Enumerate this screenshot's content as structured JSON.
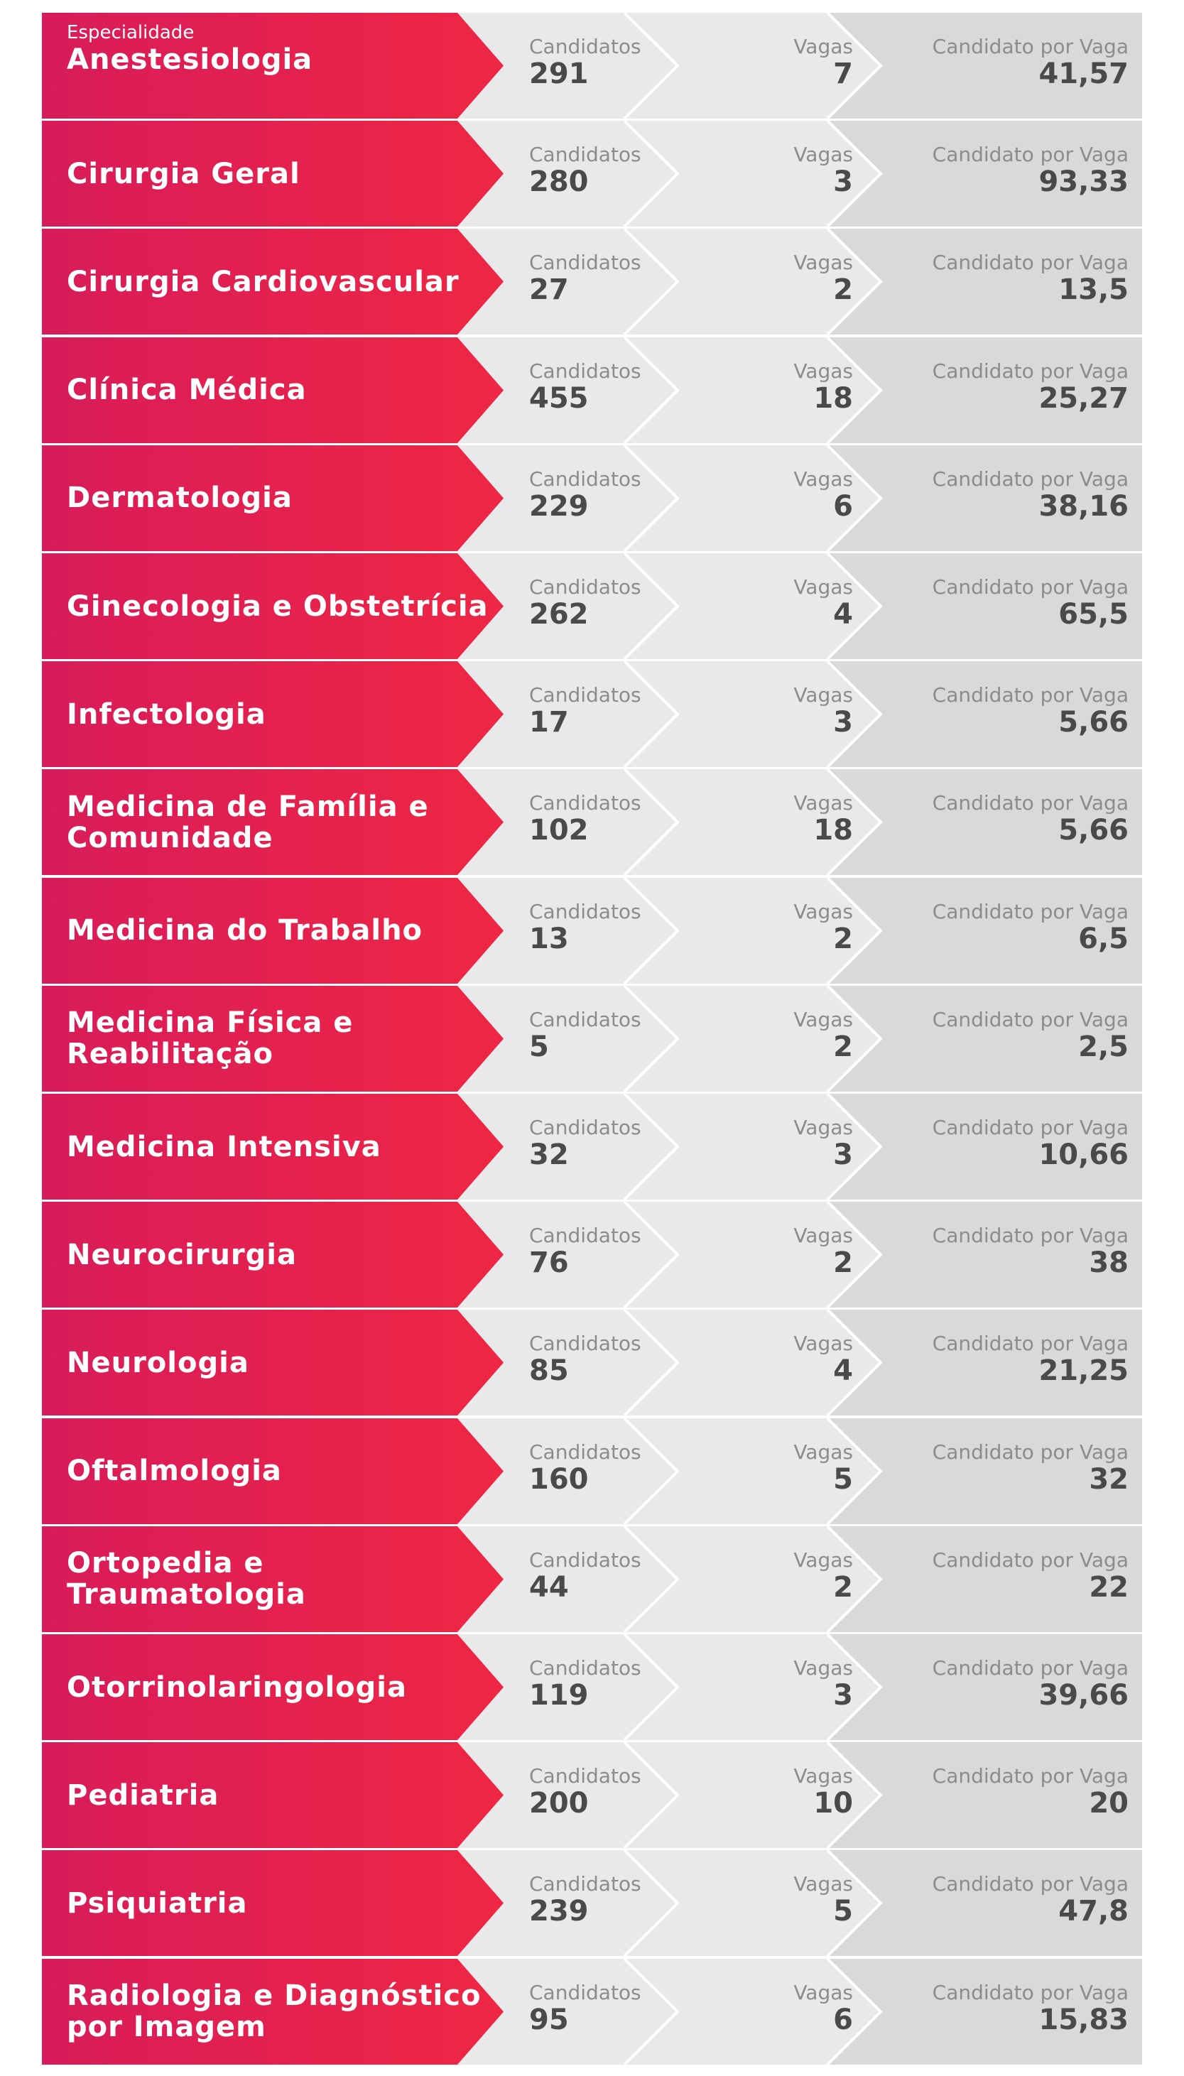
{
  "header_caption": "Especialidade",
  "colors": {
    "accent_start": "#d81b5a",
    "accent_end": "#ef2744",
    "panel_mid": "#e9e8ea",
    "panel_right": "#d9d8da",
    "text": "#4a4a4a",
    "caption": "#8c8c8e"
  },
  "labels": {
    "candidates": "Candidatos",
    "vacancies": "Vagas",
    "ratio": "Candidato por Vaga"
  },
  "rows": [
    {
      "specialty": [
        "Anestesiologia"
      ],
      "candidates": "291",
      "vacancies": "7",
      "ratio": "41,57"
    },
    {
      "specialty": [
        "Cirurgia Geral"
      ],
      "candidates": "280",
      "vacancies": "3",
      "ratio": "93,33"
    },
    {
      "specialty": [
        "Cirurgia Cardiovascular"
      ],
      "candidates": "27",
      "vacancies": "2",
      "ratio": "13,5"
    },
    {
      "specialty": [
        "Clínica Médica"
      ],
      "candidates": "455",
      "vacancies": "18",
      "ratio": "25,27"
    },
    {
      "specialty": [
        "Dermatologia"
      ],
      "candidates": "229",
      "vacancies": "6",
      "ratio": "38,16"
    },
    {
      "specialty": [
        "Ginecologia e Obstetrícia"
      ],
      "candidates": "262",
      "vacancies": "4",
      "ratio": "65,5"
    },
    {
      "specialty": [
        "Infectologia"
      ],
      "candidates": "17",
      "vacancies": "3",
      "ratio": "5,66"
    },
    {
      "specialty": [
        "Medicina de Família e",
        "Comunidade"
      ],
      "candidates": "102",
      "vacancies": "18",
      "ratio": "5,66"
    },
    {
      "specialty": [
        "Medicina do Trabalho"
      ],
      "candidates": "13",
      "vacancies": "2",
      "ratio": "6,5"
    },
    {
      "specialty": [
        "Medicina Física e",
        "Reabilitação"
      ],
      "candidates": "5",
      "vacancies": "2",
      "ratio": "2,5"
    },
    {
      "specialty": [
        "Medicina Intensiva"
      ],
      "candidates": "32",
      "vacancies": "3",
      "ratio": "10,66"
    },
    {
      "specialty": [
        "Neurocirurgia"
      ],
      "candidates": "76",
      "vacancies": "2",
      "ratio": "38"
    },
    {
      "specialty": [
        "Neurologia"
      ],
      "candidates": "85",
      "vacancies": "4",
      "ratio": "21,25"
    },
    {
      "specialty": [
        "Oftalmologia"
      ],
      "candidates": "160",
      "vacancies": "5",
      "ratio": "32"
    },
    {
      "specialty": [
        "Ortopedia e",
        "Traumatologia"
      ],
      "candidates": "44",
      "vacancies": "2",
      "ratio": "22"
    },
    {
      "specialty": [
        "Otorrinolaringologia"
      ],
      "candidates": "119",
      "vacancies": "3",
      "ratio": "39,66"
    },
    {
      "specialty": [
        "Pediatria"
      ],
      "candidates": "200",
      "vacancies": "10",
      "ratio": "20"
    },
    {
      "specialty": [
        "Psiquiatria"
      ],
      "candidates": "239",
      "vacancies": "5",
      "ratio": "47,8"
    },
    {
      "specialty": [
        "Radiologia e Diagnóstico",
        "por Imagem"
      ],
      "candidates": "95",
      "vacancies": "6",
      "ratio": "15,83"
    }
  ]
}
